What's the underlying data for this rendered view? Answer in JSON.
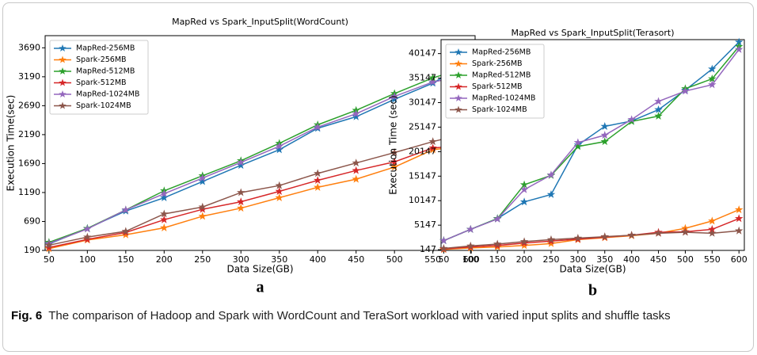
{
  "chart_data": [
    {
      "type": "line",
      "title": "MapRed vs Spark_InputSplit(WordCount)",
      "panel_label": "a",
      "x_label": "Data Size(GB)",
      "y_label": "Execution Time(sec)",
      "x": [
        50,
        100,
        150,
        200,
        250,
        300,
        350,
        400,
        450,
        500,
        550,
        600
      ],
      "xlim": [
        45,
        605
      ],
      "xticks": [
        50,
        100,
        150,
        200,
        250,
        300,
        350,
        400,
        450,
        500,
        550,
        600
      ],
      "ylim": [
        190,
        3900
      ],
      "yticks": [
        190,
        690,
        1190,
        1690,
        2190,
        2690,
        3190,
        3690
      ],
      "legend": "upper-left",
      "marker": "star",
      "series": [
        {
          "name": "MapRed-256MB",
          "color": "#1f77b4",
          "values": [
            300,
            570,
            870,
            1100,
            1380,
            1660,
            1930,
            2300,
            2500,
            2800,
            3080,
            3470
          ]
        },
        {
          "name": "Spark-256MB",
          "color": "#ff7f0e",
          "values": [
            220,
            370,
            460,
            580,
            780,
            920,
            1100,
            1280,
            1420,
            1630,
            1930,
            2000
          ]
        },
        {
          "name": "MapRed-512MB",
          "color": "#2ca02c",
          "values": [
            330,
            570,
            890,
            1220,
            1480,
            1740,
            2040,
            2360,
            2610,
            2900,
            3170,
            3370
          ]
        },
        {
          "name": "Spark-512MB",
          "color": "#d62728",
          "values": [
            240,
            380,
            500,
            720,
            900,
            1030,
            1210,
            1400,
            1570,
            1720,
            1960,
            2010
          ]
        },
        {
          "name": "MapRed-1024MB",
          "color": "#9467bd",
          "values": [
            310,
            560,
            890,
            1170,
            1440,
            1710,
            1990,
            2320,
            2550,
            2850,
            3100,
            3220
          ]
        },
        {
          "name": "Spark-1024MB",
          "color": "#8c564b",
          "values": [
            280,
            420,
            520,
            820,
            940,
            1190,
            1310,
            1520,
            1700,
            1880,
            2070,
            2230
          ]
        }
      ]
    },
    {
      "type": "line",
      "title": "MapRed vs Spark_InputSplit(Terasort)",
      "panel_label": "b",
      "x_label": "Data Size(GB)",
      "y_label": "Execution Time (sec)",
      "x": [
        50,
        100,
        150,
        200,
        250,
        300,
        350,
        400,
        450,
        500,
        550,
        600
      ],
      "xlim": [
        45,
        610
      ],
      "xticks": [
        50,
        100,
        150,
        200,
        250,
        300,
        350,
        400,
        450,
        500,
        550,
        600
      ],
      "ylim": [
        0,
        43000
      ],
      "yticks": [
        147,
        5147,
        10147,
        15147,
        20147,
        25147,
        30147,
        35147,
        40147
      ],
      "legend": "upper-left",
      "marker": "star",
      "series": [
        {
          "name": "MapRed-256MB",
          "color": "#1f77b4",
          "values": [
            2000,
            4300,
            6500,
            9900,
            11400,
            21500,
            25300,
            26400,
            28700,
            32700,
            37000,
            42500
          ]
        },
        {
          "name": "Spark-256MB",
          "color": "#ff7f0e",
          "values": [
            200,
            500,
            700,
            1000,
            1400,
            2200,
            2600,
            3000,
            3500,
            4500,
            6000,
            8300
          ]
        },
        {
          "name": "MapRed-512MB",
          "color": "#2ca02c",
          "values": [
            2000,
            4300,
            6500,
            13400,
            15300,
            21200,
            22200,
            26300,
            27400,
            33000,
            35000,
            41600
          ]
        },
        {
          "name": "Spark-512MB",
          "color": "#d62728",
          "values": [
            300,
            700,
            1000,
            1500,
            1900,
            2300,
            2700,
            3100,
            3700,
            3800,
            4300,
            6500
          ]
        },
        {
          "name": "MapRed-1024MB",
          "color": "#9467bd",
          "values": [
            2000,
            4300,
            6400,
            12400,
            15400,
            22000,
            23500,
            26700,
            30400,
            32500,
            33800,
            41000
          ]
        },
        {
          "name": "Spark-1024MB",
          "color": "#8c564b",
          "values": [
            400,
            900,
            1300,
            1800,
            2200,
            2500,
            2800,
            3100,
            3500,
            3700,
            3500,
            4000
          ]
        }
      ]
    }
  ],
  "caption_label": "Fig. 6",
  "caption": "The comparison of Hadoop and Spark with WordCount and TeraSort workload with varied input splits and shuffle tasks"
}
